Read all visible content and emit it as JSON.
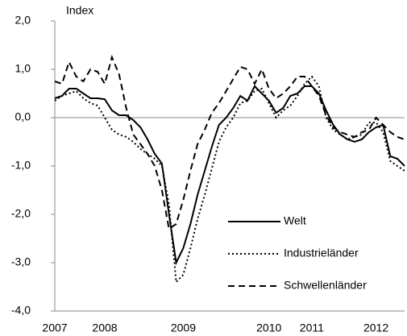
{
  "chart_data": {
    "type": "line",
    "y_label": "Index",
    "categories": [
      "2007",
      null,
      null,
      null,
      null,
      null,
      null,
      "2008",
      null,
      null,
      null,
      null,
      null,
      null,
      null,
      null,
      null,
      null,
      "2009",
      null,
      null,
      null,
      null,
      null,
      null,
      null,
      null,
      null,
      null,
      null,
      "2010",
      null,
      null,
      null,
      null,
      null,
      "2011",
      null,
      null,
      null,
      null,
      null,
      null,
      null,
      null,
      "2012",
      null,
      null,
      null,
      null
    ],
    "series": [
      {
        "name": "Welt",
        "color": "#000000",
        "style": "solid",
        "values": [
          0.4,
          0.45,
          0.6,
          0.6,
          0.5,
          0.4,
          0.4,
          0.38,
          0.15,
          0.05,
          0.05,
          -0.05,
          -0.2,
          -0.45,
          -0.75,
          -0.95,
          -2.0,
          -3.0,
          -2.7,
          -2.2,
          -1.6,
          -1.1,
          -0.6,
          -0.15,
          0.0,
          0.2,
          0.45,
          0.35,
          0.65,
          0.5,
          0.35,
          0.1,
          0.2,
          0.45,
          0.5,
          0.65,
          0.65,
          0.5,
          0.15,
          -0.15,
          -0.35,
          -0.45,
          -0.5,
          -0.45,
          -0.3,
          -0.2,
          -0.15,
          -0.8,
          -0.85,
          -1.0
        ]
      },
      {
        "name": "Industrieländer",
        "color": "#000000",
        "style": "dotted",
        "values": [
          0.35,
          0.45,
          0.5,
          0.55,
          0.4,
          0.3,
          0.25,
          0.0,
          -0.25,
          -0.35,
          -0.4,
          -0.5,
          -0.65,
          -0.75,
          -0.85,
          -1.0,
          -1.8,
          -3.4,
          -3.25,
          -2.7,
          -2.1,
          -1.6,
          -1.05,
          -0.5,
          -0.2,
          0.0,
          0.3,
          0.35,
          0.55,
          0.6,
          0.3,
          0.0,
          0.15,
          0.25,
          0.45,
          0.7,
          0.85,
          0.65,
          0.0,
          -0.25,
          -0.35,
          -0.45,
          -0.4,
          -0.35,
          -0.1,
          -0.1,
          -0.3,
          -0.9,
          -1.0,
          -1.1
        ]
      },
      {
        "name": "Schwellenländer",
        "color": "#000000",
        "style": "dashed",
        "values": [
          0.75,
          0.7,
          1.15,
          0.85,
          0.75,
          1.0,
          0.95,
          0.7,
          1.25,
          0.9,
          0.2,
          -0.35,
          -0.55,
          -0.75,
          -1.0,
          -1.5,
          -2.3,
          -2.2,
          -1.7,
          -1.1,
          -0.55,
          -0.25,
          0.1,
          0.3,
          0.55,
          0.8,
          1.05,
          1.0,
          0.7,
          1.0,
          0.6,
          0.4,
          0.5,
          0.65,
          0.85,
          0.85,
          0.65,
          0.45,
          0.05,
          -0.2,
          -0.3,
          -0.35,
          -0.4,
          -0.3,
          -0.25,
          0.0,
          -0.15,
          -0.3,
          -0.4,
          -0.45
        ]
      }
    ],
    "ylim": [
      -4,
      2
    ],
    "yticks": [
      {
        "value": 2,
        "label": "2,0"
      },
      {
        "value": 1,
        "label": "1,0"
      },
      {
        "value": 0,
        "label": "0,0"
      },
      {
        "value": -1,
        "label": "-1,0"
      },
      {
        "value": -2,
        "label": "-2,0"
      },
      {
        "value": -3,
        "label": "-3,0"
      },
      {
        "value": -4,
        "label": "-4,0"
      }
    ],
    "grid": false,
    "legend": "lower right"
  }
}
